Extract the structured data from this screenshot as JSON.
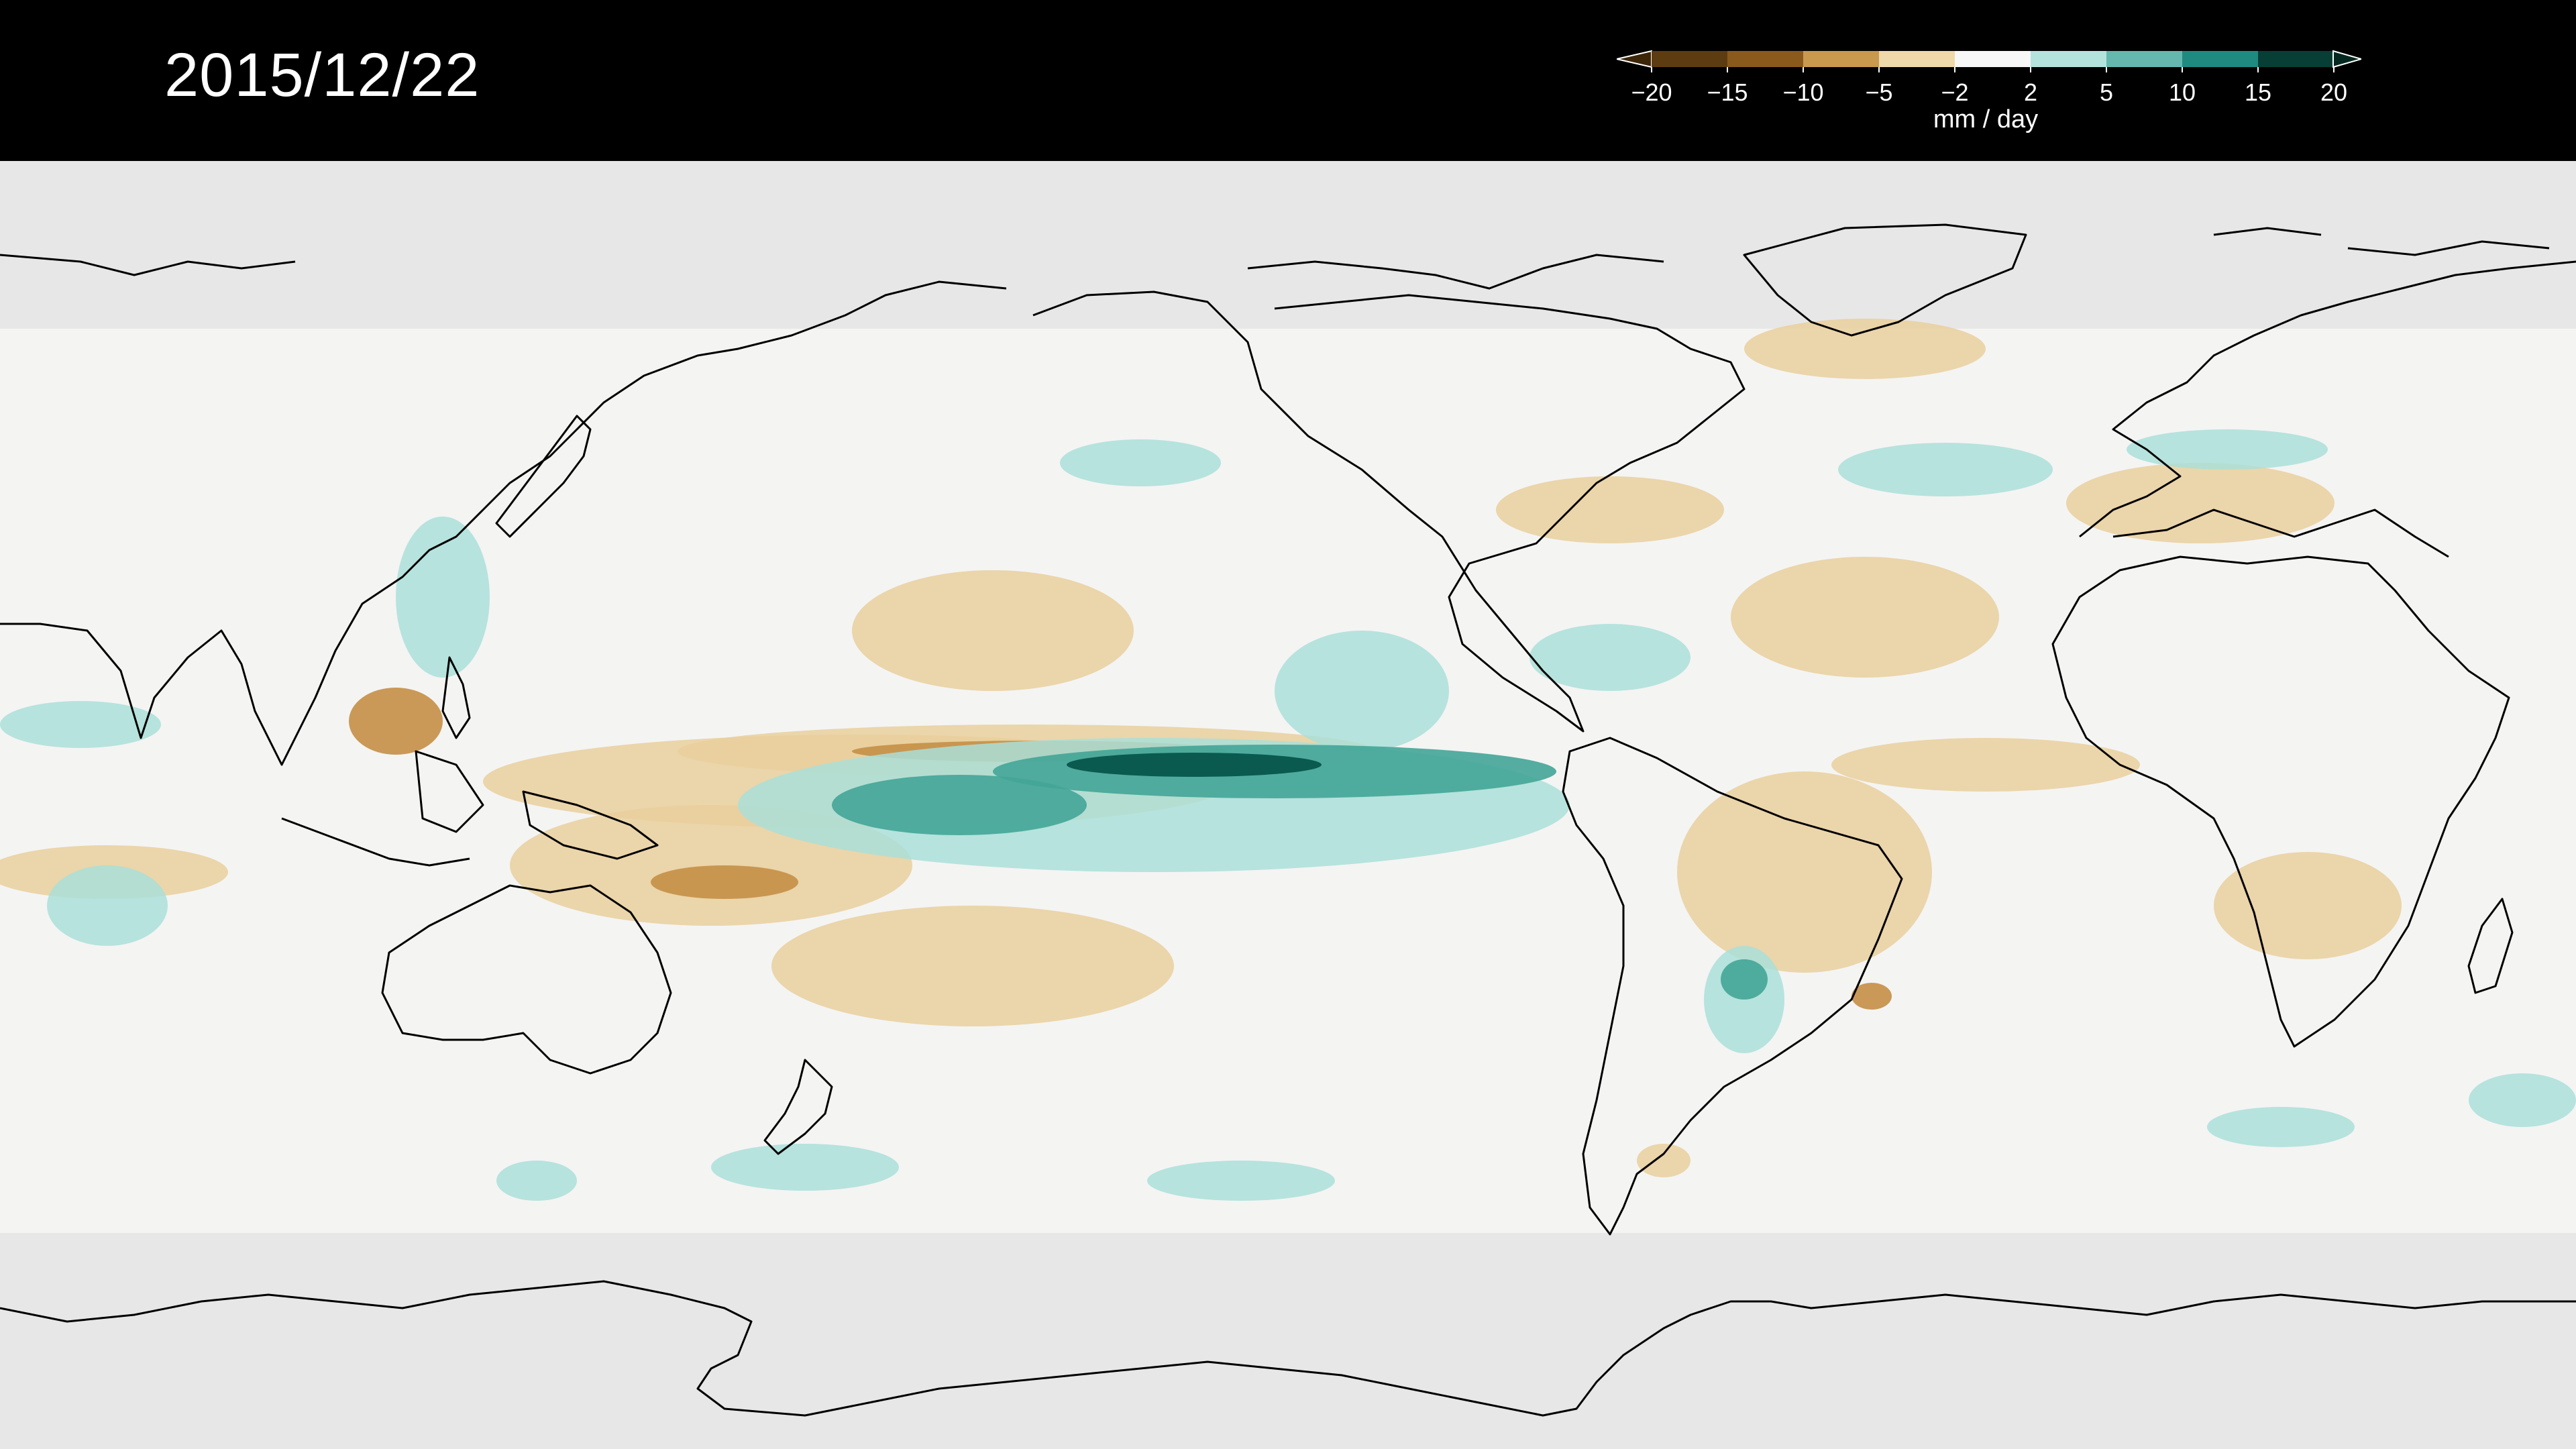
{
  "date": "2015/12/22",
  "colorbar": {
    "unit": "mm / day",
    "tick_labels": [
      "−20",
      "−15",
      "−10",
      "−5",
      "−2",
      "2",
      "5",
      "10",
      "15",
      "20"
    ],
    "bin_colors": [
      "#5e3c12",
      "#8a5a1c",
      "#c99a4e",
      "#efd9aa",
      "#f7f7f7",
      "#b4e3dd",
      "#64b8ad",
      "#1f8b80",
      "#073f37"
    ],
    "under_color": "#3d2508",
    "over_color": "#032820"
  },
  "map": {
    "ocean_fill": "#f4f4f3",
    "polar_fill": "#e7e7e7",
    "coastline_color": "#000000",
    "dry_color": "#e9cf9c",
    "dry_strong_color": "#c58f46",
    "wet_color": "#aadfd8",
    "wet_strong_color": "#43a597",
    "wet_extreme_color": "#0b5a4f"
  }
}
